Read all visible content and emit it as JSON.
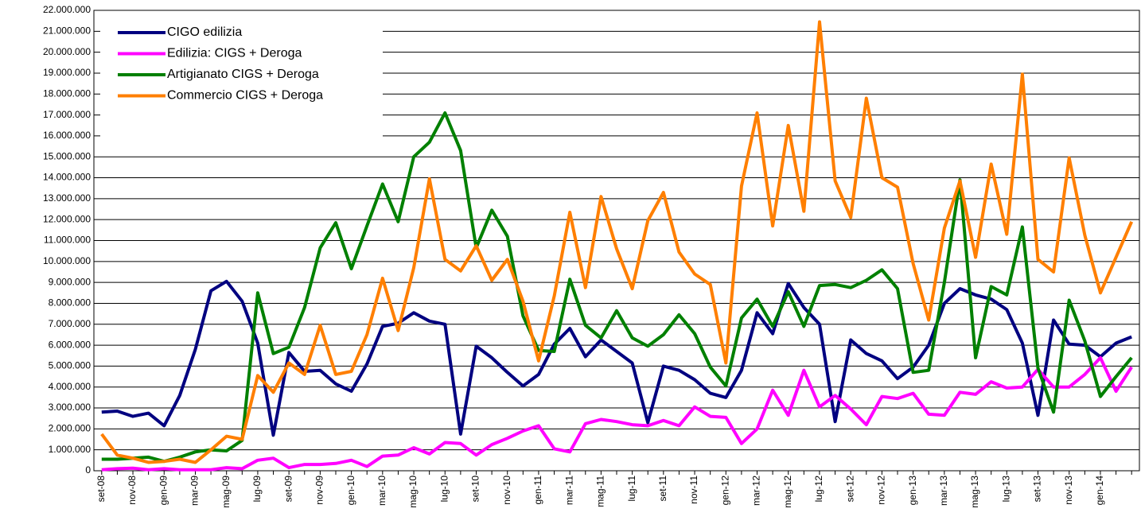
{
  "chart_data": {
    "type": "line",
    "categories": [
      "set-08",
      null,
      "nov-08",
      null,
      "gen-09",
      null,
      "mar-09",
      null,
      "mag-09",
      null,
      "lug-09",
      null,
      "set-09",
      null,
      "nov-09",
      null,
      "gen-10",
      null,
      "mar-10",
      null,
      "mag-10",
      null,
      "lug-10",
      null,
      "set-10",
      null,
      "nov-10",
      null,
      "gen-11",
      null,
      "mar-11",
      null,
      "mag-11",
      null,
      "lug-11",
      null,
      "set-11",
      null,
      "nov-11",
      null,
      "gen-12",
      null,
      "mar-12",
      null,
      "mag-12",
      null,
      "lug-12",
      null,
      "set-12",
      null,
      "nov-12",
      null,
      "gen-13",
      null,
      "mar-13",
      null,
      "mag-13",
      null,
      "lug-13",
      null,
      "set-13",
      null,
      "nov-13",
      null,
      "gen-14",
      null,
      null
    ],
    "series": [
      {
        "name": "CIGO edilizia",
        "color": "#000080",
        "values": [
          2800000,
          2850000,
          2600000,
          2750000,
          2150000,
          3600000,
          5800000,
          8600000,
          9050000,
          8100000,
          6100000,
          1700000,
          5650000,
          4750000,
          4800000,
          4150000,
          3800000,
          5100000,
          6900000,
          7050000,
          7550000,
          7150000,
          7000000,
          1750000,
          5950000,
          5400000,
          4700000,
          4050000,
          4600000,
          6050000,
          6800000,
          5450000,
          6250000,
          5700000,
          5150000,
          2300000,
          5000000,
          4800000,
          4350000,
          3700000,
          3500000,
          4800000,
          7550000,
          6550000,
          8950000,
          7800000,
          7000000,
          2350000,
          6250000,
          5600000,
          5250000,
          4400000,
          4950000,
          6000000,
          8000000,
          8700000,
          8400000,
          8200000,
          7700000,
          6100000,
          2650000,
          7200000,
          6050000,
          6000000,
          5450000,
          6100000,
          6400000
        ]
      },
      {
        "name": "Edilizia: CIGS + Deroga",
        "color": "#ff00ff",
        "values": [
          50000,
          100000,
          120000,
          50000,
          100000,
          50000,
          50000,
          50000,
          150000,
          100000,
          500000,
          600000,
          150000,
          300000,
          300000,
          350000,
          500000,
          200000,
          700000,
          750000,
          1100000,
          800000,
          1350000,
          1300000,
          750000,
          1250000,
          1550000,
          1900000,
          2150000,
          1050000,
          900000,
          2250000,
          2450000,
          2350000,
          2200000,
          2150000,
          2400000,
          2150000,
          3050000,
          2600000,
          2550000,
          1300000,
          2000000,
          3850000,
          2650000,
          4800000,
          3050000,
          3600000,
          2950000,
          2200000,
          3550000,
          3450000,
          3700000,
          2700000,
          2650000,
          3750000,
          3650000,
          4250000,
          3950000,
          4000000,
          4850000,
          4000000,
          4000000,
          4600000,
          5400000,
          3800000,
          4950000
        ]
      },
      {
        "name": "Artigianato CIGS + Deroga",
        "color": "#008000",
        "values": [
          550000,
          550000,
          600000,
          650000,
          450000,
          650000,
          900000,
          1000000,
          950000,
          1450000,
          8500000,
          5600000,
          5900000,
          7800000,
          10650000,
          11850000,
          9650000,
          11700000,
          13700000,
          11900000,
          15000000,
          15700000,
          17100000,
          15300000,
          10650000,
          12450000,
          11200000,
          7400000,
          5750000,
          5700000,
          9150000,
          6950000,
          6350000,
          7650000,
          6350000,
          5950000,
          6500000,
          7450000,
          6550000,
          4950000,
          4050000,
          7300000,
          8200000,
          6900000,
          8550000,
          6900000,
          8850000,
          8900000,
          8750000,
          9100000,
          9600000,
          8700000,
          4700000,
          4800000,
          9000000,
          13900000,
          5400000,
          8800000,
          8400000,
          11650000,
          4900000,
          2800000,
          8150000,
          6200000,
          3550000,
          4500000,
          5400000
        ]
      },
      {
        "name": "Commercio CIGS + Deroga",
        "color": "#ff7f00",
        "values": [
          1750000,
          750000,
          600000,
          400000,
          450000,
          550000,
          400000,
          1000000,
          1650000,
          1500000,
          4550000,
          3750000,
          5150000,
          4600000,
          6950000,
          4600000,
          4750000,
          6500000,
          9200000,
          6700000,
          9700000,
          13950000,
          10100000,
          9550000,
          10750000,
          9100000,
          10100000,
          8100000,
          5250000,
          8350000,
          12350000,
          8750000,
          13100000,
          10600000,
          8700000,
          11950000,
          13300000,
          10450000,
          9400000,
          8900000,
          5150000,
          13600000,
          17100000,
          11700000,
          16500000,
          12400000,
          21450000,
          13850000,
          12100000,
          17800000,
          14000000,
          13550000,
          9900000,
          7200000,
          11600000,
          13850000,
          10200000,
          14650000,
          11300000,
          18950000,
          10100000,
          9500000,
          14950000,
          11250000,
          8500000,
          10200000,
          11900000
        ]
      }
    ],
    "ylim": [
      0,
      22000000
    ],
    "yticks": [
      0,
      {
        "value": 1000000,
        "label": "1.000.000"
      },
      {
        "value": 2000000,
        "label": "2.000.000"
      },
      {
        "value": 3000000,
        "label": "3.000.000"
      },
      {
        "value": 4000000,
        "label": "4.000.000"
      },
      {
        "value": 5000000,
        "label": "5.000.000"
      },
      {
        "value": 6000000,
        "label": "6.000.000"
      },
      {
        "value": 7000000,
        "label": "7.000.000"
      },
      {
        "value": 8000000,
        "label": "8.000.000"
      },
      {
        "value": 9000000,
        "label": "9.000.000"
      },
      {
        "value": 10000000,
        "label": "10.000.000"
      },
      {
        "value": 11000000,
        "label": "11.000.000"
      },
      {
        "value": 12000000,
        "label": "12.000.000"
      },
      {
        "value": 13000000,
        "label": "13.000.000"
      },
      {
        "value": 14000000,
        "label": "14.000.000"
      },
      {
        "value": 15000000,
        "label": "15.000.000"
      },
      {
        "value": 16000000,
        "label": "16.000.000"
      },
      {
        "value": 17000000,
        "label": "17.000.000"
      },
      {
        "value": 18000000,
        "label": "18.000.000"
      },
      {
        "value": 19000000,
        "label": "19.000.000"
      },
      {
        "value": 20000000,
        "label": "20.000.000"
      },
      {
        "value": 21000000,
        "label": "21.000.000"
      },
      {
        "value": 22000000,
        "label": "22.000.000"
      }
    ],
    "grid": true,
    "legend": "top-left"
  }
}
